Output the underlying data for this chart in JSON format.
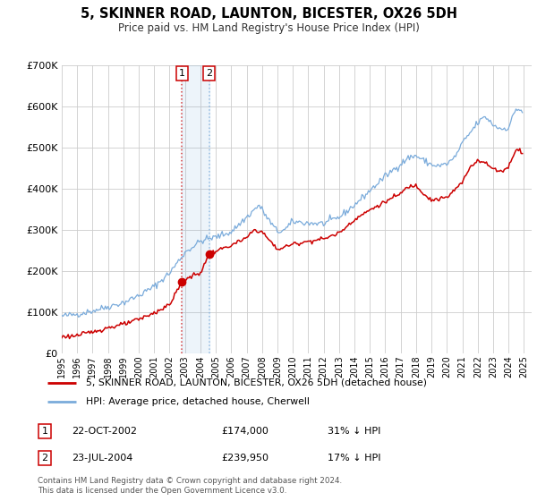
{
  "title": "5, SKINNER ROAD, LAUNTON, BICESTER, OX26 5DH",
  "subtitle": "Price paid vs. HM Land Registry's House Price Index (HPI)",
  "legend_label_red": "5, SKINNER ROAD, LAUNTON, BICESTER, OX26 5DH (detached house)",
  "legend_label_blue": "HPI: Average price, detached house, Cherwell",
  "transaction1_label": "1",
  "transaction1_date": "22-OCT-2002",
  "transaction1_price": "£174,000",
  "transaction1_hpi": "31% ↓ HPI",
  "transaction2_label": "2",
  "transaction2_date": "23-JUL-2004",
  "transaction2_price": "£239,950",
  "transaction2_hpi": "17% ↓ HPI",
  "footer": "Contains HM Land Registry data © Crown copyright and database right 2024.\nThis data is licensed under the Open Government Licence v3.0.",
  "red_color": "#cc0000",
  "blue_color": "#7aabdb",
  "background_color": "#ffffff",
  "grid_color": "#cccccc",
  "ylim": [
    0,
    700000
  ],
  "yticks": [
    0,
    100000,
    200000,
    300000,
    400000,
    500000,
    600000,
    700000
  ],
  "xlim_start": 1995.0,
  "xlim_end": 2025.5,
  "transaction1_x": 2002.8,
  "transaction1_y": 174000,
  "transaction2_x": 2004.56,
  "transaction2_y": 239950,
  "hpi_anchors": [
    [
      1995.0,
      90000
    ],
    [
      1996.0,
      95000
    ],
    [
      1997.0,
      103000
    ],
    [
      1998.0,
      113000
    ],
    [
      1999.0,
      123000
    ],
    [
      2000.0,
      140000
    ],
    [
      2001.0,
      162000
    ],
    [
      2002.0,
      195000
    ],
    [
      2003.0,
      245000
    ],
    [
      2004.0,
      272000
    ],
    [
      2004.5,
      278000
    ],
    [
      2005.0,
      282000
    ],
    [
      2006.0,
      295000
    ],
    [
      2007.0,
      330000
    ],
    [
      2007.8,
      360000
    ],
    [
      2008.5,
      320000
    ],
    [
      2009.0,
      295000
    ],
    [
      2009.5,
      300000
    ],
    [
      2010.0,
      320000
    ],
    [
      2011.0,
      316000
    ],
    [
      2012.0,
      315000
    ],
    [
      2013.0,
      330000
    ],
    [
      2014.0,
      360000
    ],
    [
      2015.0,
      395000
    ],
    [
      2016.0,
      430000
    ],
    [
      2017.0,
      460000
    ],
    [
      2017.5,
      475000
    ],
    [
      2018.0,
      480000
    ],
    [
      2018.5,
      468000
    ],
    [
      2019.0,
      458000
    ],
    [
      2019.5,
      455000
    ],
    [
      2020.0,
      460000
    ],
    [
      2020.5,
      475000
    ],
    [
      2021.0,
      510000
    ],
    [
      2021.5,
      535000
    ],
    [
      2022.0,
      560000
    ],
    [
      2022.5,
      575000
    ],
    [
      2023.0,
      555000
    ],
    [
      2023.5,
      545000
    ],
    [
      2024.0,
      548000
    ],
    [
      2024.5,
      595000
    ],
    [
      2024.9,
      588000
    ]
  ],
  "pp_anchors": [
    [
      1995.0,
      40000
    ],
    [
      1996.0,
      43000
    ],
    [
      1997.0,
      52000
    ],
    [
      1998.0,
      62000
    ],
    [
      1999.0,
      70000
    ],
    [
      2000.0,
      82000
    ],
    [
      2001.0,
      98000
    ],
    [
      2002.0,
      118000
    ],
    [
      2002.8,
      174000
    ],
    [
      2003.0,
      180000
    ],
    [
      2003.5,
      188000
    ],
    [
      2004.0,
      195000
    ],
    [
      2004.56,
      239950
    ],
    [
      2005.0,
      248000
    ],
    [
      2006.0,
      262000
    ],
    [
      2007.0,
      280000
    ],
    [
      2007.5,
      300000
    ],
    [
      2008.0,
      295000
    ],
    [
      2009.0,
      252000
    ],
    [
      2010.0,
      265000
    ],
    [
      2011.0,
      272000
    ],
    [
      2012.0,
      278000
    ],
    [
      2013.0,
      292000
    ],
    [
      2014.0,
      325000
    ],
    [
      2015.0,
      348000
    ],
    [
      2016.0,
      368000
    ],
    [
      2017.0,
      388000
    ],
    [
      2017.5,
      405000
    ],
    [
      2018.0,
      408000
    ],
    [
      2018.5,
      388000
    ],
    [
      2019.0,
      372000
    ],
    [
      2020.0,
      378000
    ],
    [
      2021.0,
      415000
    ],
    [
      2021.5,
      452000
    ],
    [
      2022.0,
      470000
    ],
    [
      2022.5,
      462000
    ],
    [
      2023.0,
      448000
    ],
    [
      2023.5,
      442000
    ],
    [
      2024.0,
      452000
    ],
    [
      2024.5,
      498000
    ],
    [
      2024.9,
      488000
    ]
  ]
}
